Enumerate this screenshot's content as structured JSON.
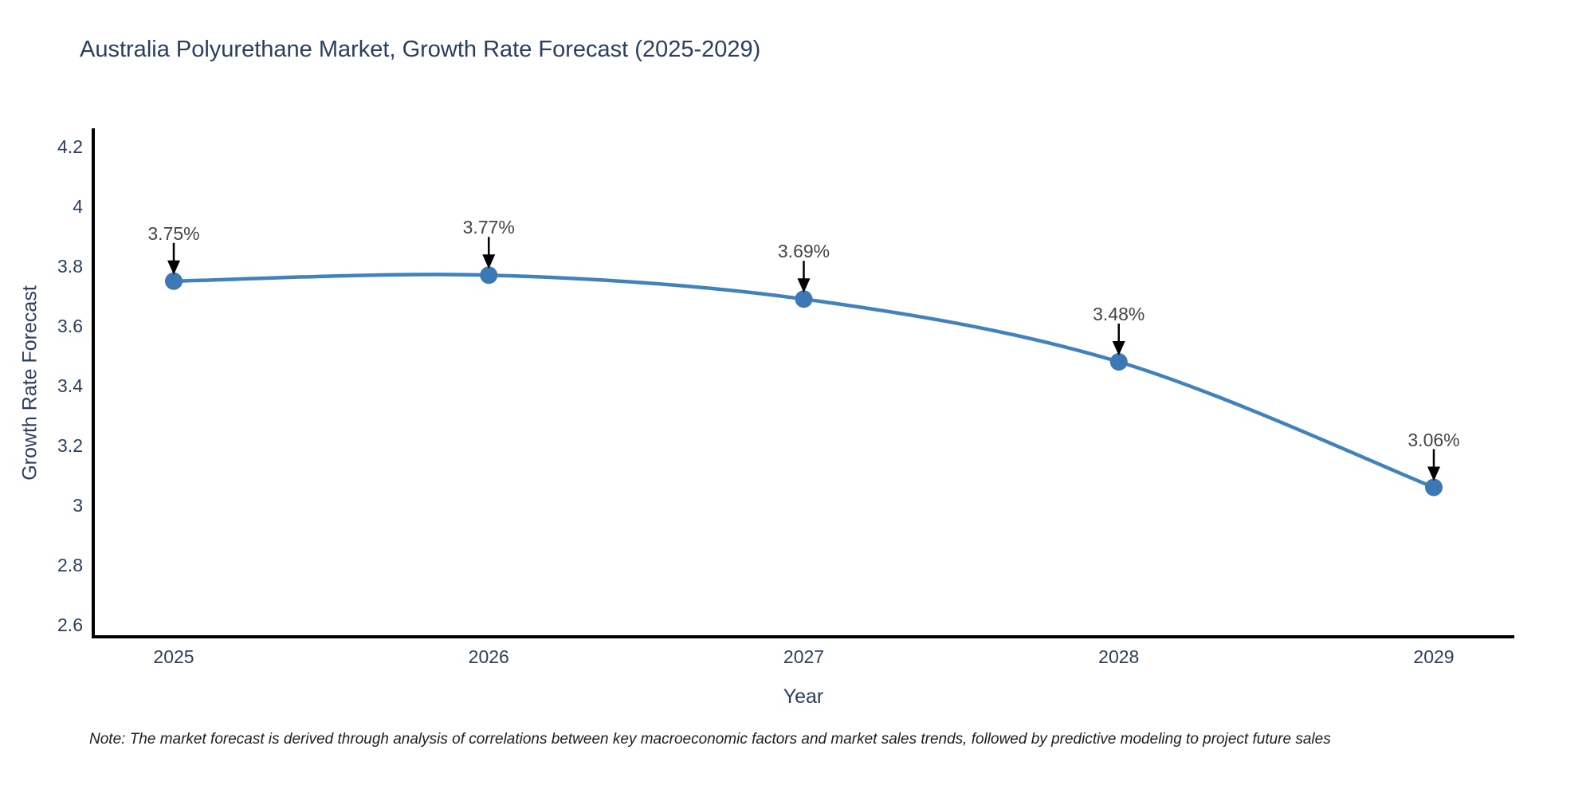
{
  "title": "Australia Polyurethane Market, Growth Rate Forecast (2025-2029)",
  "note": "Note: The market forecast is derived through analysis of correlations between key macroeconomic factors and market sales trends, followed by predictive modeling to project future sales",
  "chart_data": {
    "type": "line",
    "title": "Australia Polyurethane Market, Growth Rate Forecast (2025-2029)",
    "xlabel": "Year",
    "ylabel": "Growth Rate Forecast",
    "x": [
      2025,
      2026,
      2027,
      2028,
      2029
    ],
    "series": [
      {
        "name": "Growth Rate Forecast",
        "values": [
          3.75,
          3.77,
          3.69,
          3.48,
          3.06
        ]
      }
    ],
    "point_labels": [
      "3.75%",
      "3.77%",
      "3.69%",
      "3.48%",
      "3.06%"
    ],
    "x_tick_labels": [
      "2025",
      "2026",
      "2027",
      "2028",
      "2029"
    ],
    "y_tick_labels": [
      "2.6",
      "2.8",
      "3",
      "3.2",
      "3.4",
      "3.6",
      "3.8",
      "4",
      "4.2"
    ],
    "y_tick_values": [
      2.6,
      2.8,
      3.0,
      3.2,
      3.4,
      3.6,
      3.8,
      4.0,
      4.2
    ],
    "ylim": [
      2.6,
      4.2
    ],
    "line_shape": "spline",
    "grid": false,
    "legend": false,
    "colors": {
      "line": "#4182bd",
      "marker": "#3c78b4",
      "axis_line": "#000000",
      "text": "#2a3f5f",
      "annotation_text": "#444444",
      "arrow": "#000000",
      "background": "#ffffff"
    }
  }
}
